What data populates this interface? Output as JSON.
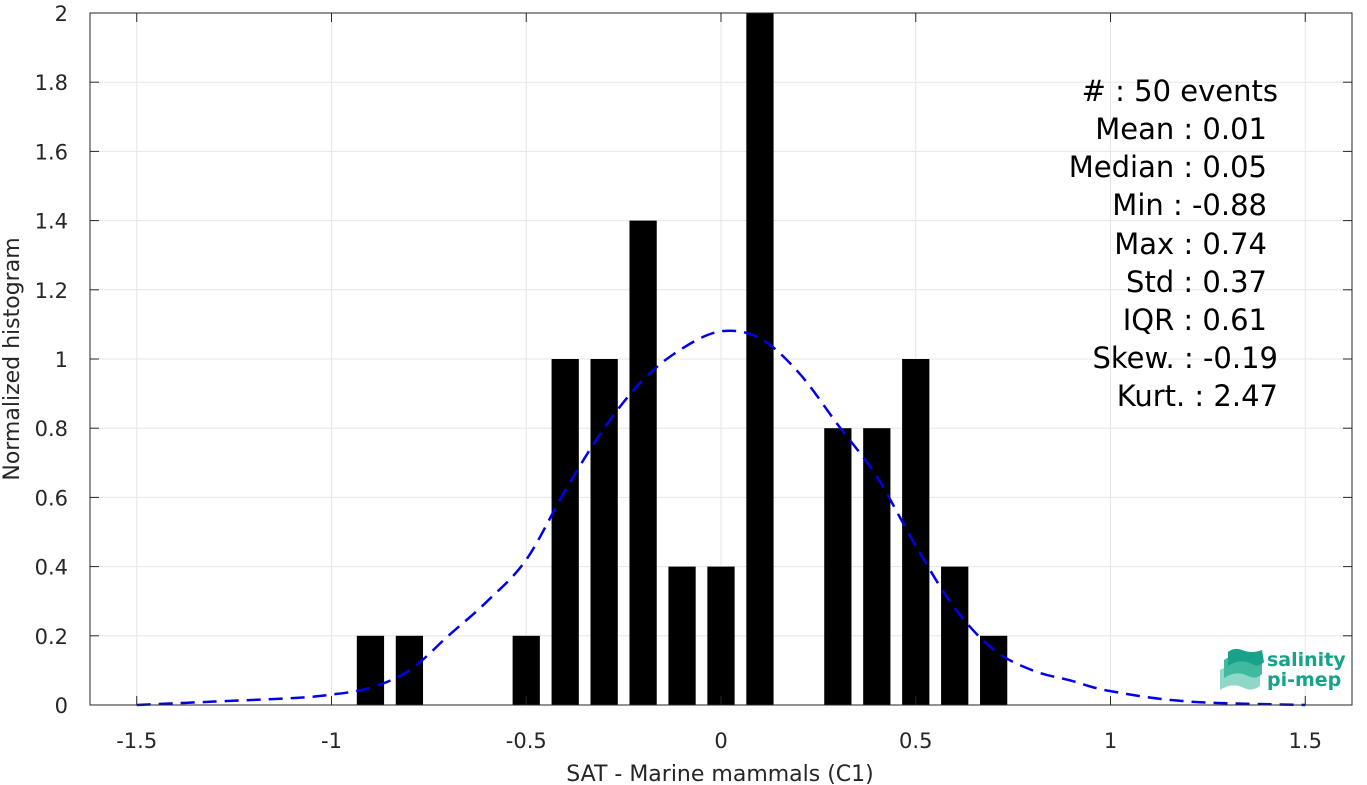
{
  "chart_data": {
    "type": "bar",
    "xlabel": "SAT - Marine mammals (C1)",
    "ylabel": "Normalized histogram",
    "xlim": [
      -1.62,
      1.62
    ],
    "ylim": [
      0,
      2
    ],
    "grid": true,
    "x_ticks": [
      -1.5,
      -1,
      -0.5,
      0,
      0.5,
      1,
      1.5
    ],
    "x_tick_labels": [
      "-1.5",
      "-1",
      "-0.5",
      "0",
      "0.5",
      "1",
      "1.5"
    ],
    "y_ticks": [
      0,
      0.2,
      0.4,
      0.6,
      0.8,
      1,
      1.2,
      1.4,
      1.6,
      1.8,
      2
    ],
    "y_tick_labels": [
      "0",
      "0.2",
      "0.4",
      "0.6",
      "0.8",
      "1",
      "1.2",
      "1.4",
      "1.6",
      "1.8",
      "2"
    ],
    "bar_width": 0.07,
    "bars": [
      {
        "x": -0.9,
        "value": 0.2
      },
      {
        "x": -0.8,
        "value": 0.2
      },
      {
        "x": -0.5,
        "value": 0.2
      },
      {
        "x": -0.4,
        "value": 1.0
      },
      {
        "x": -0.3,
        "value": 1.0
      },
      {
        "x": -0.2,
        "value": 1.4
      },
      {
        "x": -0.1,
        "value": 0.4
      },
      {
        "x": 0.0,
        "value": 0.4
      },
      {
        "x": 0.1,
        "value": 2.0
      },
      {
        "x": 0.3,
        "value": 0.8
      },
      {
        "x": 0.4,
        "value": 0.8
      },
      {
        "x": 0.5,
        "value": 1.0
      },
      {
        "x": 0.6,
        "value": 0.4
      },
      {
        "x": 0.7,
        "value": 0.2
      }
    ],
    "fit_curve": {
      "style": "dashed",
      "color": "#0000ee",
      "x": [
        -1.5,
        -1.3,
        -1.1,
        -1.0,
        -0.9,
        -0.8,
        -0.7,
        -0.6,
        -0.5,
        -0.4,
        -0.3,
        -0.2,
        -0.1,
        0.0,
        0.1,
        0.2,
        0.3,
        0.4,
        0.5,
        0.6,
        0.7,
        0.8,
        0.9,
        1.0,
        1.2,
        1.5
      ],
      "y": [
        0.0,
        0.01,
        0.02,
        0.03,
        0.05,
        0.1,
        0.2,
        0.3,
        0.42,
        0.62,
        0.8,
        0.94,
        1.03,
        1.08,
        1.06,
        0.96,
        0.81,
        0.66,
        0.46,
        0.28,
        0.16,
        0.1,
        0.07,
        0.04,
        0.01,
        0.0
      ]
    },
    "stats": [
      "#  : 50 events",
      "Mean : 0.01",
      "Median : 0.05",
      "Min : -0.88",
      "Max : 0.74",
      "Std : 0.37",
      "IQR : 0.61",
      "Skew. : -0.19",
      "Kurt. : 2.47"
    ]
  },
  "logo": {
    "line1": "salinity",
    "line2": "pi-mep"
  },
  "colors": {
    "bar": "#000000",
    "grid": "#e6e6e6",
    "axis": "#262626",
    "fit": "#0000ee",
    "logo_accent": "#17a289"
  }
}
